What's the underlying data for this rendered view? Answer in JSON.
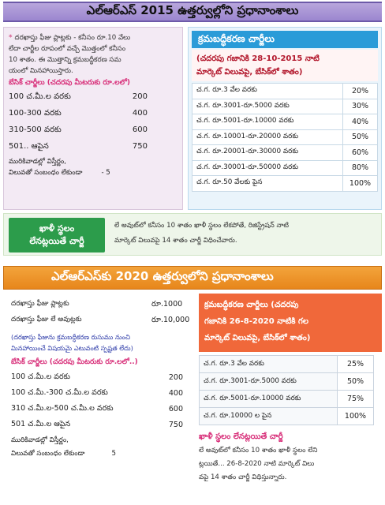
{
  "section1": {
    "title": "ఎల్ఆర్ఎస్ 2015 ఉత్తర్వుల్లోని ప్రధానాంశాలు",
    "intro_bullet": "*",
    "intro": [
      "దరఖాస్తు ఫీజు ప్లాట్లకు - కనీసం రూ.10 వేలు",
      "లేదా చార్జీల రూపంలో వచ్చే మొత్తంలో కనీసం",
      "10 శాతం. ఈ మొత్తాన్ని క్రమబద్ధీకరణ సమ",
      "యంలో మినహాయిస్తారు."
    ],
    "base_label": "బేసిక్ చార్జీలు (చదరపు మీటరుకు రూ.లలో)",
    "fees": [
      {
        "range": "100 చ.మీ.ల వరకు",
        "value": "200"
      },
      {
        "range": "100-300 వరకు",
        "value": "400"
      },
      {
        "range": "310-500 వరకు",
        "value": "600"
      },
      {
        "range": "501.. ఆపైన",
        "value": "750"
      }
    ],
    "foot_lines": [
      "మురికివాడల్లో విస్తీర్ణం,",
      "విలువతో సంబంధం లేకుండా"
    ],
    "foot_value": "- 5",
    "regularization": {
      "title": "క్రమబద్ధీకరణ చార్జీలు",
      "subtitle_lines": [
        "(చదరపు గజానికి 28-10-2015 నాటి",
        "మార్కెట్ విలువపై, బేసిక్‌లో శాతం)"
      ],
      "rows": [
        {
          "range": "చ.గ. రూ.3 వేల వరకు",
          "pct": "20%"
        },
        {
          "range": "చ.గ. రూ.3001-రూ.5000 వరకు",
          "pct": "30%"
        },
        {
          "range": "చ.గ. రూ.5001-రూ.10000 వరకు",
          "pct": "40%"
        },
        {
          "range": "చ.గ. రూ.10001-రూ.20000 వరకు",
          "pct": "50%"
        },
        {
          "range": "చ.గ. రూ.20001-రూ.30000 వరకు",
          "pct": "60%"
        },
        {
          "range": "చ.గ. రూ.30001-రూ.50000 వరకు",
          "pct": "80%"
        },
        {
          "range": "చ.గ. రూ.50 వేలకు పైన",
          "pct": "100%"
        }
      ]
    }
  },
  "khali_band": {
    "tag_lines": [
      "ఖాళీ స్థలం",
      "లేనట్లయితే చార్జీ"
    ],
    "text_lines": [
      "లే అవుట్‌లో కనీసం 10 శాతం ఖాళీ స్థలం లేకపోతే, రిజిస్ట్రేషన్ నాటి",
      "మార్కెట్ విలువపై 14 శాతం చార్జీ విధించేవారు."
    ]
  },
  "section2": {
    "title": "ఎల్ఆర్ఎస్‌కు 2020 ఉత్తర్వులోని ప్రధానాంశాలు",
    "app_fees": [
      {
        "label": "దరఖాస్తు ఫీజు ప్లాట్లకు",
        "value": "రూ.1000"
      },
      {
        "label": "దరఖాస్తు ఫీజు లే అవుట్లకు",
        "value": "రూ.10,000"
      }
    ],
    "note_lines": [
      "(దరఖాస్తు ఫీజును క్రమబద్ధీకరణ రుసుము నుంచి",
      "మినహాయించే విషయమై ఎటువంటి స్పష్టత లేదు)"
    ],
    "base_label": "బేసిక్ చార్జీలు (చదరపు మీటరుకు రూ.లలో..)",
    "fees": [
      {
        "range": "100 చ.మీ.ల వరకు",
        "value": "200"
      },
      {
        "range": "100 చ.మీ.-300 చ.మీ.ల వరకు",
        "value": "400"
      },
      {
        "range": "310 చ.మీ.ల-500 చ.మీ.ల వరకు",
        "value": "600"
      },
      {
        "range": "501 చ.మీ.ల ఆపైన",
        "value": "750"
      }
    ],
    "foot_lines": [
      "మురికివాడల్లో విస్తీర్ణం,",
      "విలువతో సంబంధం లేకుండా"
    ],
    "foot_value": "5",
    "regularization": {
      "head_lines": [
        "క్రమబద్ధీకరణ చార్జీలు (చదరపు",
        "గజానికి 26-8-2020 నాటికి గల",
        "మార్కెట్ విలువపై, బేసిక్‌లో శాతం)"
      ],
      "rows": [
        {
          "range": "చ.గ. రూ.3 వేల వరకు",
          "pct": "25%"
        },
        {
          "range": "చ.గ. రూ.3001-రూ.5000 వరకు",
          "pct": "50%"
        },
        {
          "range": "చ.గ. రూ.5001-రూ.10000 వరకు",
          "pct": "75%"
        },
        {
          "range": "చ.గ. రూ.10000 ల పైన",
          "pct": "100%"
        }
      ]
    },
    "khali": {
      "title": "ఖాళీ స్థలం లేనట్లయితే చార్జీ",
      "text_lines": [
        "లే అవుట్‌లో కనీసం 10 శాతం ఖాళీ స్థలం లేని",
        "ట్లయితే... 26-8-2020 నాటి మార్కెట్ విలు",
        "వపై 14 శాతం చార్జీ విధిస్తున్నారు."
      ]
    }
  }
}
